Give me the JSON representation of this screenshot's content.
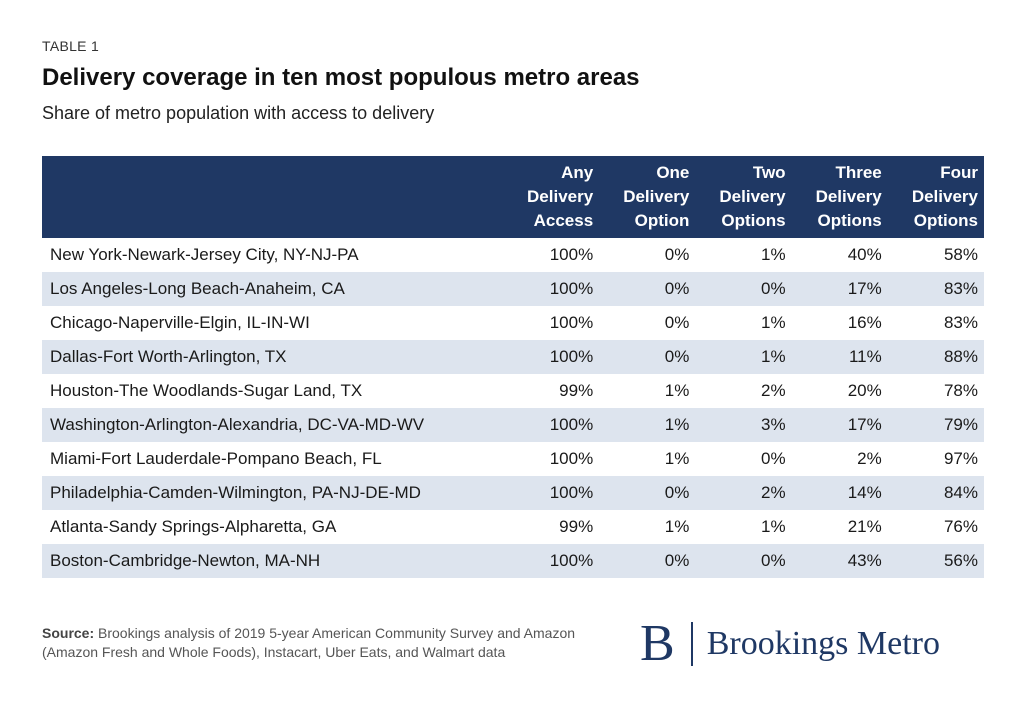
{
  "header": {
    "label": "TABLE 1",
    "title": "Delivery coverage in ten most populous metro areas",
    "subtitle": "Share of metro population with access to delivery"
  },
  "table": {
    "columns": [
      {
        "key": "name",
        "lines": []
      },
      {
        "key": "any",
        "lines": [
          "Any",
          "Delivery",
          "Access"
        ]
      },
      {
        "key": "one",
        "lines": [
          "One",
          "Delivery",
          "Option"
        ]
      },
      {
        "key": "two",
        "lines": [
          "Two",
          "Delivery",
          "Options"
        ]
      },
      {
        "key": "three",
        "lines": [
          "Three",
          "Delivery",
          "Options"
        ]
      },
      {
        "key": "four",
        "lines": [
          "Four",
          "Delivery",
          "Options"
        ]
      }
    ],
    "rows": [
      {
        "name": "New York-Newark-Jersey City, NY-NJ-PA",
        "any": "100%",
        "one": "0%",
        "two": "1%",
        "three": "40%",
        "four": "58%"
      },
      {
        "name": "Los Angeles-Long Beach-Anaheim, CA",
        "any": "100%",
        "one": "0%",
        "two": "0%",
        "three": "17%",
        "four": "83%"
      },
      {
        "name": "Chicago-Naperville-Elgin, IL-IN-WI",
        "any": "100%",
        "one": "0%",
        "two": "1%",
        "three": "16%",
        "four": "83%"
      },
      {
        "name": "Dallas-Fort Worth-Arlington, TX",
        "any": "100%",
        "one": "0%",
        "two": "1%",
        "three": "11%",
        "four": "88%"
      },
      {
        "name": "Houston-The Woodlands-Sugar Land, TX",
        "any": "99%",
        "one": "1%",
        "two": "2%",
        "three": "20%",
        "four": "78%"
      },
      {
        "name": "Washington-Arlington-Alexandria, DC-VA-MD-WV",
        "any": "100%",
        "one": "1%",
        "two": "3%",
        "three": "17%",
        "four": "79%"
      },
      {
        "name": "Miami-Fort Lauderdale-Pompano Beach, FL",
        "any": "100%",
        "one": "1%",
        "two": "0%",
        "three": "2%",
        "four": "97%"
      },
      {
        "name": "Philadelphia-Camden-Wilmington, PA-NJ-DE-MD",
        "any": "100%",
        "one": "0%",
        "two": "2%",
        "three": "14%",
        "four": "84%"
      },
      {
        "name": "Atlanta-Sandy Springs-Alpharetta, GA",
        "any": "99%",
        "one": "1%",
        "two": "1%",
        "three": "21%",
        "four": "76%"
      },
      {
        "name": "Boston-Cambridge-Newton, MA-NH",
        "any": "100%",
        "one": "0%",
        "two": "0%",
        "three": "43%",
        "four": "56%"
      }
    ]
  },
  "footer": {
    "source_label": "Source:",
    "source_text": "Brookings analysis of 2019 5-year American Community Survey and Amazon (Amazon Fresh and Whole Foods), Instacart, Uber Eats, and Walmart data",
    "logo_mark": "B",
    "logo_text": "Brookings Metro"
  },
  "colors": {
    "header_bg": "#1f3864",
    "stripe": "#dde4ee",
    "brand": "#1f3864"
  }
}
